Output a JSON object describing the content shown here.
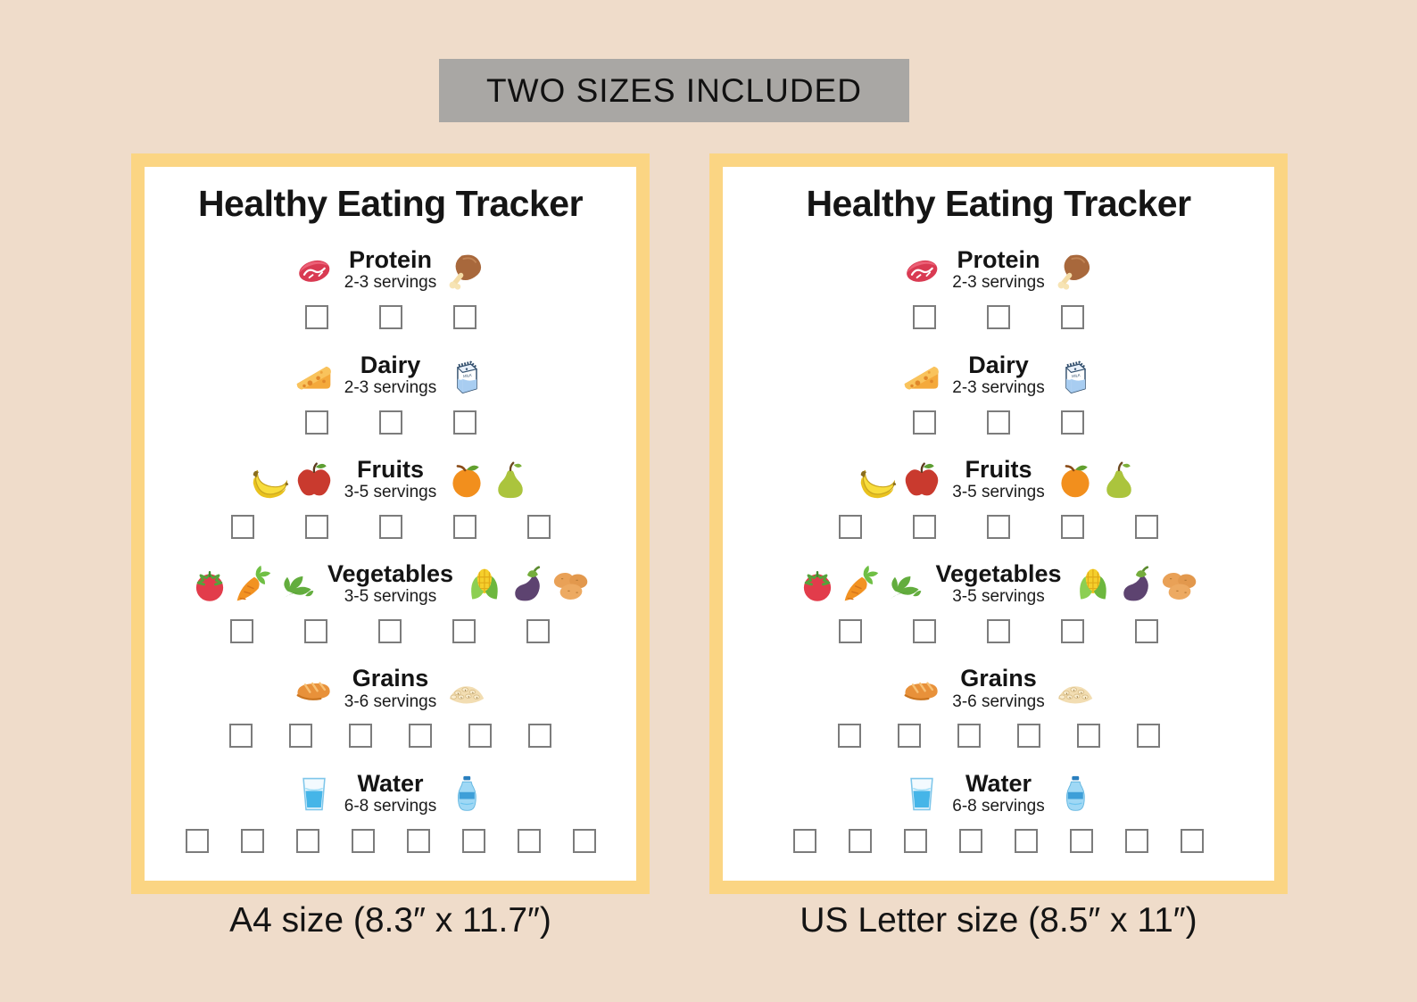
{
  "banner": {
    "label": "TWO SIZES INCLUDED"
  },
  "tracker": {
    "title": "Healthy Eating Tracker",
    "rows": [
      {
        "id": "protein",
        "label": "Protein",
        "servings": "2-3 servings",
        "boxes": 3,
        "left_icons": [
          "steak-icon"
        ],
        "right_icons": [
          "drumstick-icon"
        ]
      },
      {
        "id": "dairy",
        "label": "Dairy",
        "servings": "2-3 servings",
        "boxes": 3,
        "left_icons": [
          "cheese-icon"
        ],
        "right_icons": [
          "milk-carton-icon"
        ]
      },
      {
        "id": "fruits",
        "label": "Fruits",
        "servings": "3-5 servings",
        "boxes": 5,
        "left_icons": [
          "bananas-icon",
          "apple-icon"
        ],
        "right_icons": [
          "orange-icon",
          "pear-icon"
        ]
      },
      {
        "id": "vegetables",
        "label": "Vegetables",
        "servings": "3-5 servings",
        "boxes": 5,
        "left_icons": [
          "tomato-icon",
          "carrot-icon",
          "leafy-greens-icon"
        ],
        "right_icons": [
          "corn-icon",
          "eggplant-icon",
          "potatoes-icon"
        ]
      },
      {
        "id": "grains",
        "label": "Grains",
        "servings": "3-6 servings",
        "boxes": 6,
        "left_icons": [
          "bread-icon"
        ],
        "right_icons": [
          "oats-icon"
        ]
      },
      {
        "id": "water",
        "label": "Water",
        "servings": "6-8 servings",
        "boxes": 8,
        "left_icons": [
          "water-glass-icon"
        ],
        "right_icons": [
          "water-bottle-icon"
        ]
      }
    ]
  },
  "cards": [
    {
      "id": "a4",
      "size_caption": "A4 size (8.3″ x 11.7″)"
    },
    {
      "id": "letter",
      "size_caption": "US Letter size (8.5″ x 11″)"
    }
  ],
  "colors": {
    "page_background": "#efdcca",
    "banner_background": "#a9a7a4",
    "card_border": "#fbd583",
    "card_background": "#ffffff",
    "checkbox_border": "#7c7c7c",
    "text": "#141414"
  }
}
